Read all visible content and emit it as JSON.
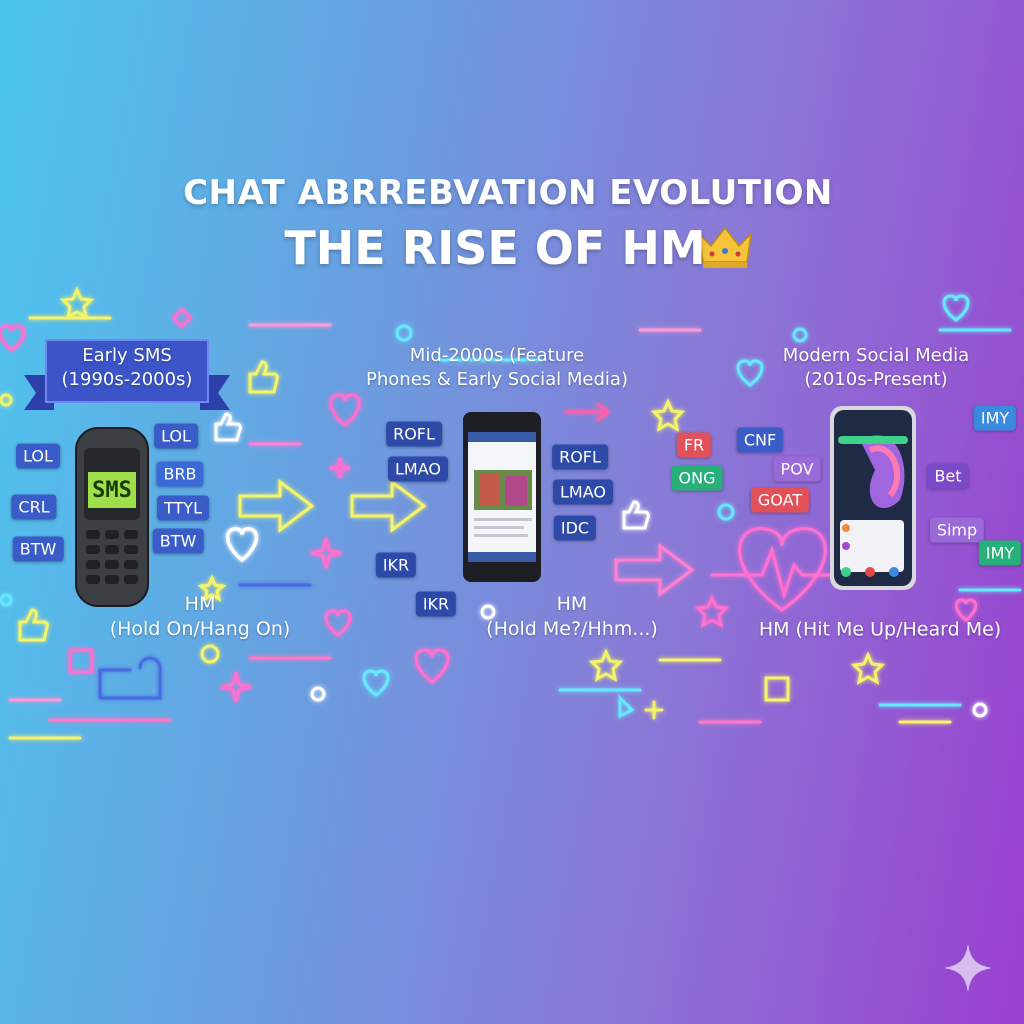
{
  "header": {
    "title": "CHAT ABRREBVATION EVOLUTION",
    "subtitle": "THE RISE OF HM"
  },
  "eras": [
    {
      "label": [
        "Early SMS",
        "(1990s-2000s)"
      ],
      "screen_text": "SMS",
      "chips": [
        "LOL",
        "CRL",
        "BTW",
        "LOL",
        "BRB",
        "TTYL",
        "BTW"
      ],
      "hm": [
        "HM",
        "(Hold On/Hang On)"
      ]
    },
    {
      "label": [
        "Mid-2000s (Feature",
        "Phones & Early Social Media)"
      ],
      "chips": [
        "ROFL",
        "LMAO",
        "IKR",
        "IKR",
        "ROFL",
        "LMAO",
        "IDC"
      ],
      "hm": [
        "HM",
        "(Hold Me?/Hhm...)"
      ]
    },
    {
      "label": [
        "Modern Social Media",
        "(2010s-Present)"
      ],
      "chips": [
        "FR",
        "ONG",
        "CNF",
        "POV",
        "GOAT",
        "IMY",
        "Bet",
        "Simp",
        "IMY"
      ],
      "hm": [
        "HM (Hit Me Up/Heard Me)"
      ]
    }
  ]
}
